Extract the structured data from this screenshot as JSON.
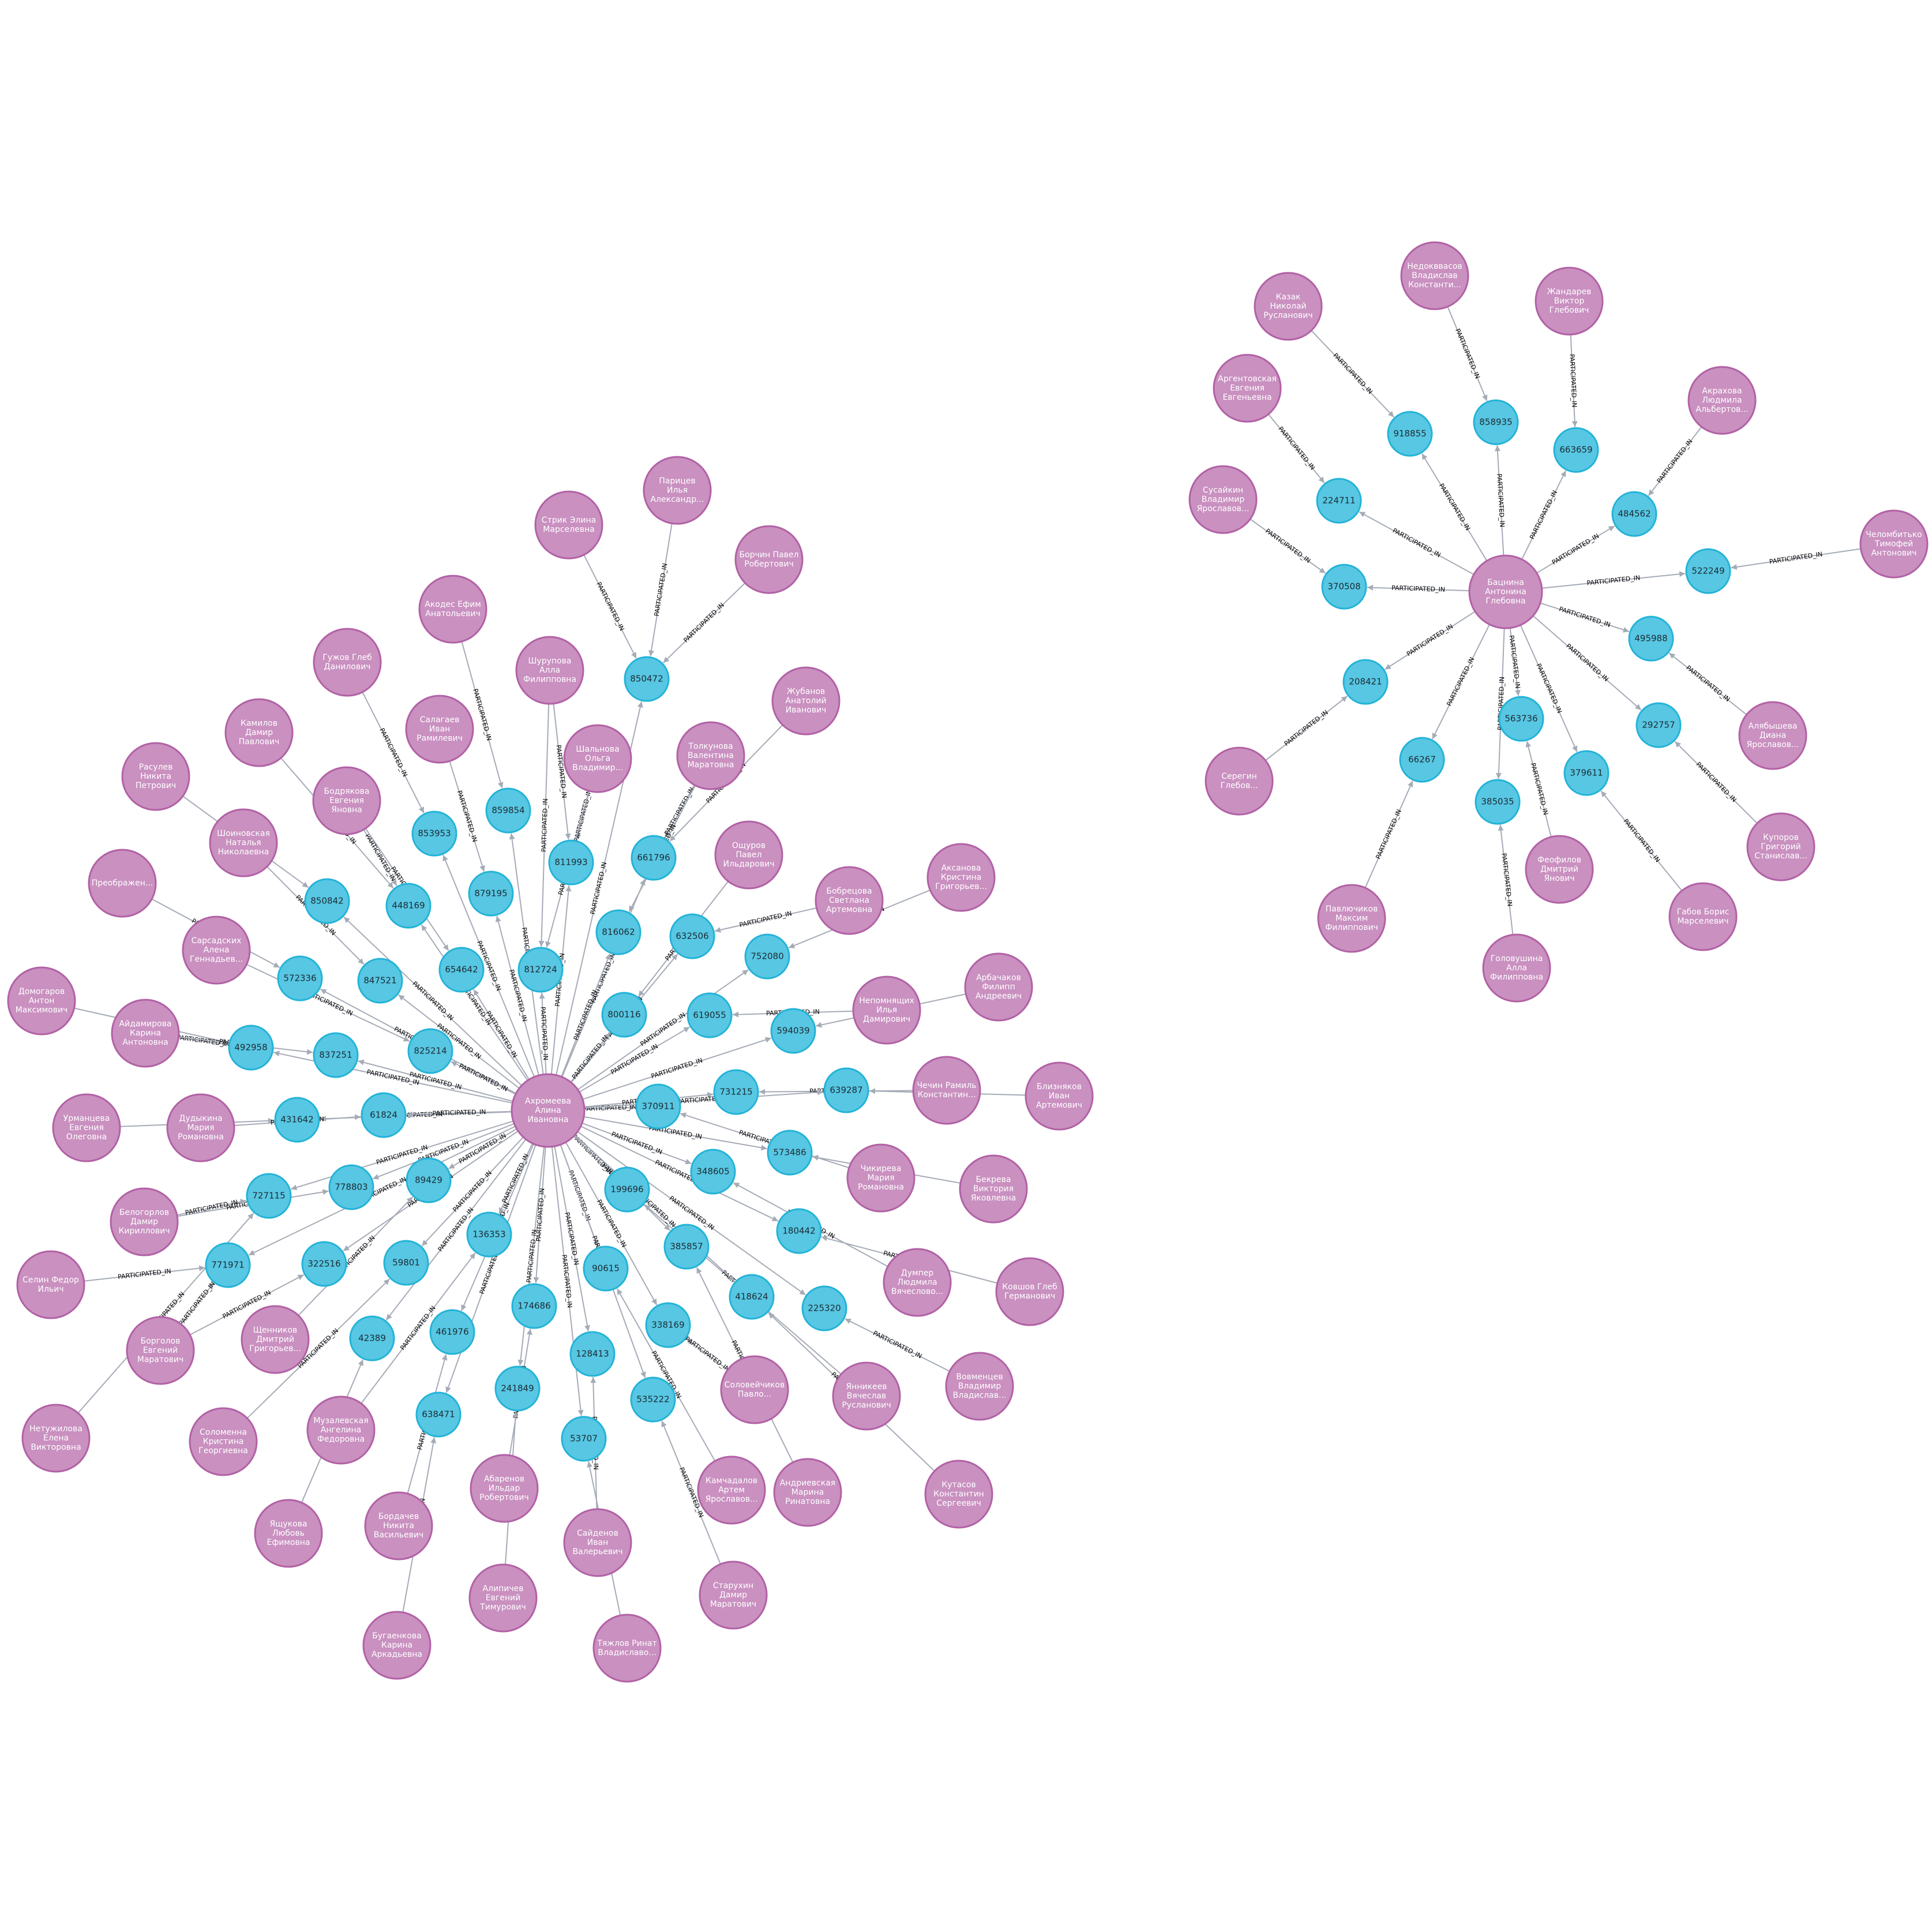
{
  "graph": {
    "relationship_label": "PARTICIPATED_IN",
    "colors": {
      "person_fill": "#c990c0",
      "person_stroke": "#b261a5",
      "event_fill": "#57c7e3",
      "event_stroke": "#23b3d7",
      "edge": "#a5abb6"
    },
    "persons": [
      {
        "id": "P0",
        "name": [
          "Ахромеева",
          "Алина",
          "Ивановна"
        ]
      },
      {
        "id": "P1",
        "name": [
          "Стрик Элина",
          "Марселевна"
        ]
      },
      {
        "id": "P2",
        "name": [
          "Парицев",
          "Илья",
          "Александр..."
        ]
      },
      {
        "id": "P3",
        "name": [
          "Борчин Павел",
          "Робертович"
        ]
      },
      {
        "id": "P4",
        "name": [
          "Акодес Ефим",
          "Анатольевич"
        ]
      },
      {
        "id": "P5",
        "name": [
          "Шурупова",
          "Алла",
          "Филипповна"
        ]
      },
      {
        "id": "P6",
        "name": [
          "Гужов Глеб",
          "Данилович"
        ]
      },
      {
        "id": "P7",
        "name": [
          "Салагаев",
          "Иван",
          "Рамилевич"
        ]
      },
      {
        "id": "P8",
        "name": [
          "Жубанов",
          "Анатолий",
          "Иванович"
        ]
      },
      {
        "id": "P9",
        "name": [
          "Шальнова",
          "Ольга",
          "Владимир..."
        ]
      },
      {
        "id": "P10",
        "name": [
          "Толкунова",
          "Валентина",
          "Маратовна"
        ]
      },
      {
        "id": "P11",
        "name": [
          "Камилов",
          "Дамир",
          "Павлович"
        ]
      },
      {
        "id": "P12",
        "name": [
          "Расулев",
          "Никита",
          "Петрович"
        ]
      },
      {
        "id": "P13",
        "name": [
          "Бодрякова",
          "Евгения",
          "Яновна"
        ]
      },
      {
        "id": "P14",
        "name": [
          "Ощуров",
          "Павел",
          "Ильдарович"
        ]
      },
      {
        "id": "P15",
        "name": [
          "Шоиновская",
          "Наталья",
          "Николаевна"
        ]
      },
      {
        "id": "P16",
        "name": [
          "Аксанова",
          "Кристина",
          "Григорьев..."
        ]
      },
      {
        "id": "P17",
        "name": [
          "Бобрецова",
          "Светлана",
          "Артемовна"
        ]
      },
      {
        "id": "P18",
        "name": [
          "Преображен..."
        ]
      },
      {
        "id": "P19",
        "name": [
          "Сарсадских",
          "Алена",
          "Геннадьев..."
        ]
      },
      {
        "id": "P20",
        "name": [
          "Арбачаков",
          "Филипп",
          "Андреевич"
        ]
      },
      {
        "id": "P21",
        "name": [
          "Домогаров",
          "Антон",
          "Максимович"
        ]
      },
      {
        "id": "P22",
        "name": [
          "Айдамирова",
          "Карина",
          "Антоновна"
        ]
      },
      {
        "id": "P23",
        "name": [
          "Непомнящих",
          "Илья",
          "Дамирович"
        ]
      },
      {
        "id": "P24",
        "name": [
          "Чечин Рамиль",
          "Константин..."
        ]
      },
      {
        "id": "P25",
        "name": [
          "Близняков",
          "Иван",
          "Артемович"
        ]
      },
      {
        "id": "P26",
        "name": [
          "Урманцева",
          "Евгения",
          "Олеговна"
        ]
      },
      {
        "id": "P27",
        "name": [
          "Дудыкина",
          "Мария",
          "Романовна"
        ]
      },
      {
        "id": "P28",
        "name": [
          "Чикирева",
          "Мария",
          "Романовна"
        ]
      },
      {
        "id": "P29",
        "name": [
          "Бекрева",
          "Виктория",
          "Яковлевна"
        ]
      },
      {
        "id": "P30",
        "name": [
          "Белогорлов",
          "Дамир",
          "Кириллович"
        ]
      },
      {
        "id": "P31",
        "name": [
          "Селин Федор",
          "Ильич"
        ]
      },
      {
        "id": "P32",
        "name": [
          "Думпер",
          "Людмила",
          "Вячеслово..."
        ]
      },
      {
        "id": "P33",
        "name": [
          "Ковшов Глеб",
          "Германович"
        ]
      },
      {
        "id": "P34",
        "name": [
          "Щенников",
          "Дмитрий",
          "Григорьев..."
        ]
      },
      {
        "id": "P35",
        "name": [
          "Борголов",
          "Евгений",
          "Маратович"
        ]
      },
      {
        "id": "P36",
        "name": [
          "Вовменцев",
          "Владимир",
          "Владислав..."
        ]
      },
      {
        "id": "P37",
        "name": [
          "Нетужилова",
          "Елена",
          "Викторовна"
        ]
      },
      {
        "id": "P38",
        "name": [
          "Соловейчиков",
          "Павло..."
        ]
      },
      {
        "id": "P39",
        "name": [
          "Янникеев",
          "Вячеслав",
          "Русланович"
        ]
      },
      {
        "id": "P40",
        "name": [
          "Соломенна",
          "Кристина",
          "Георгиевна"
        ]
      },
      {
        "id": "P41",
        "name": [
          "Музалевская",
          "Ангелина",
          "Федоровна"
        ]
      },
      {
        "id": "P42",
        "name": [
          "Андриевская",
          "Марина",
          "Ринатовна"
        ]
      },
      {
        "id": "P43",
        "name": [
          "Кутасов",
          "Константин",
          "Сергеевич"
        ]
      },
      {
        "id": "P44",
        "name": [
          "Камчадалов",
          "Артем",
          "Ярославов..."
        ]
      },
      {
        "id": "P45",
        "name": [
          "Абаренов",
          "Ильдар",
          "Робертович"
        ]
      },
      {
        "id": "P46",
        "name": [
          "Ящукова",
          "Любовь",
          "Ефимовна"
        ]
      },
      {
        "id": "P47",
        "name": [
          "Бордачев",
          "Никита",
          "Васильевич"
        ]
      },
      {
        "id": "P48",
        "name": [
          "Сайденов",
          "Иван",
          "Валерьевич"
        ]
      },
      {
        "id": "P49",
        "name": [
          "Старухин",
          "Дамир",
          "Маратович"
        ]
      },
      {
        "id": "P50",
        "name": [
          "Алипичев",
          "Евгений",
          "Тимурович"
        ]
      },
      {
        "id": "P51",
        "name": [
          "Бугаенкова",
          "Карина",
          "Аркадьевна"
        ]
      },
      {
        "id": "P52",
        "name": [
          "Тяжлов Ринат",
          "Владиславо..."
        ]
      },
      {
        "id": "Q0",
        "name": [
          "Бацнина",
          "Антонина",
          "Глебовна"
        ]
      },
      {
        "id": "Q1",
        "name": [
          "Казак",
          "Николай",
          "Русланович"
        ]
      },
      {
        "id": "Q2",
        "name": [
          "Недокввасов",
          "Владислав",
          "Константи..."
        ]
      },
      {
        "id": "Q3",
        "name": [
          "Жандарев",
          "Виктор",
          "Глебович"
        ]
      },
      {
        "id": "Q4",
        "name": [
          "Аргентовская",
          "Евгения",
          "Евгеньевна"
        ]
      },
      {
        "id": "Q5",
        "name": [
          "Акрахова",
          "Людмила",
          "Альбертов..."
        ]
      },
      {
        "id": "Q6",
        "name": [
          "Сусайкин",
          "Владимир",
          "Ярославов..."
        ]
      },
      {
        "id": "Q7",
        "name": [
          "Челомбитько",
          "Тимофей",
          "Антонович"
        ]
      },
      {
        "id": "Q8",
        "name": [
          "Алябышева",
          "Диана",
          "Ярославов..."
        ]
      },
      {
        "id": "Q9",
        "name": [
          "Серегин",
          "Глебов..."
        ]
      },
      {
        "id": "Q10",
        "name": [
          "Купоров",
          "Григорий",
          "Станислав..."
        ]
      },
      {
        "id": "Q11",
        "name": [
          "Феофилов",
          "Дмитрий",
          "Янович"
        ]
      },
      {
        "id": "Q12",
        "name": [
          "Павлючиков",
          "Максим",
          "Филиппович"
        ]
      },
      {
        "id": "Q13",
        "name": [
          "Габов Борис",
          "Марселевич"
        ]
      },
      {
        "id": "Q14",
        "name": [
          "Головушина",
          "Алла",
          "Филипповна"
        ]
      }
    ],
    "events": [
      "850472",
      "859854",
      "853953",
      "811993",
      "661796",
      "879195",
      "448169",
      "850842",
      "816062",
      "812724",
      "654642",
      "632506",
      "752080",
      "572336",
      "847521",
      "800116",
      "619055",
      "594039",
      "825214",
      "492958",
      "837251",
      "370911",
      "731215",
      "639287",
      "431642",
      "61824",
      "573486",
      "348605",
      "778803",
      "89429",
      "727115",
      "199696",
      "180442",
      "136353",
      "771971",
      "322516",
      "59801",
      "385857",
      "90615",
      "225320",
      "418624",
      "42389",
      "461976",
      "174686",
      "338169",
      "128413",
      "241849",
      "535222",
      "638471",
      "53707",
      "918855",
      "858935",
      "663659",
      "224711",
      "484562",
      "370508",
      "522249",
      "495988",
      "208421",
      "563736",
      "292757",
      "66267",
      "379611",
      "385035"
    ],
    "edges": [
      {
        "from": "P0",
        "to": "850472"
      },
      {
        "from": "P1",
        "to": "850472"
      },
      {
        "from": "P2",
        "to": "850472"
      },
      {
        "from": "P3",
        "to": "850472"
      },
      {
        "from": "P0",
        "to": "859854"
      },
      {
        "from": "P4",
        "to": "859854"
      },
      {
        "from": "P0",
        "to": "853953"
      },
      {
        "from": "P6",
        "to": "853953"
      },
      {
        "from": "P0",
        "to": "811993"
      },
      {
        "from": "P5",
        "to": "811993"
      },
      {
        "from": "P9",
        "to": "811993"
      },
      {
        "from": "P0",
        "to": "661796"
      },
      {
        "from": "P8",
        "to": "661796"
      },
      {
        "from": "P10",
        "to": "661796"
      },
      {
        "from": "P0",
        "to": "879195"
      },
      {
        "from": "P7",
        "to": "879195"
      },
      {
        "from": "P0",
        "to": "448169"
      },
      {
        "from": "P11",
        "to": "448169"
      },
      {
        "from": "P13",
        "to": "448169"
      },
      {
        "from": "P0",
        "to": "850842"
      },
      {
        "from": "P12",
        "to": "850842"
      },
      {
        "from": "P0",
        "to": "816062"
      },
      {
        "from": "P10",
        "to": "816062"
      },
      {
        "from": "P0",
        "to": "812724"
      },
      {
        "from": "P5",
        "to": "812724"
      },
      {
        "from": "P9",
        "to": "812724"
      },
      {
        "from": "P0",
        "to": "654642"
      },
      {
        "from": "P13",
        "to": "654642"
      },
      {
        "from": "P0",
        "to": "632506"
      },
      {
        "from": "P17",
        "to": "632506"
      },
      {
        "from": "P0",
        "to": "752080"
      },
      {
        "from": "P16",
        "to": "752080"
      },
      {
        "from": "P0",
        "to": "572336"
      },
      {
        "from": "P18",
        "to": "572336"
      },
      {
        "from": "P0",
        "to": "847521"
      },
      {
        "from": "P15",
        "to": "847521"
      },
      {
        "from": "P0",
        "to": "800116"
      },
      {
        "from": "P14",
        "to": "800116"
      },
      {
        "from": "P0",
        "to": "619055"
      },
      {
        "from": "P23",
        "to": "619055"
      },
      {
        "from": "P0",
        "to": "594039"
      },
      {
        "from": "P20",
        "to": "594039"
      },
      {
        "from": "P0",
        "to": "825214"
      },
      {
        "from": "P19",
        "to": "825214"
      },
      {
        "from": "P0",
        "to": "492958"
      },
      {
        "from": "P21",
        "to": "492958"
      },
      {
        "from": "P22",
        "to": "492958"
      },
      {
        "from": "P0",
        "to": "837251"
      },
      {
        "from": "P22",
        "to": "837251"
      },
      {
        "from": "P0",
        "to": "370911"
      },
      {
        "from": "P28",
        "to": "370911"
      },
      {
        "from": "P0",
        "to": "731215"
      },
      {
        "from": "P24",
        "to": "731215"
      },
      {
        "from": "P0",
        "to": "639287"
      },
      {
        "from": "P25",
        "to": "639287"
      },
      {
        "from": "P0",
        "to": "431642"
      },
      {
        "from": "P26",
        "to": "431642"
      },
      {
        "from": "P0",
        "to": "61824"
      },
      {
        "from": "P27",
        "to": "61824"
      },
      {
        "from": "P0",
        "to": "573486"
      },
      {
        "from": "P29",
        "to": "573486"
      },
      {
        "from": "P0",
        "to": "348605"
      },
      {
        "from": "P32",
        "to": "348605"
      },
      {
        "from": "P0",
        "to": "778803"
      },
      {
        "from": "P30",
        "to": "778803"
      },
      {
        "from": "P0",
        "to": "89429"
      },
      {
        "from": "P34",
        "to": "89429"
      },
      {
        "from": "P0",
        "to": "727115"
      },
      {
        "from": "P30",
        "to": "727115"
      },
      {
        "from": "P0",
        "to": "199696"
      },
      {
        "from": "P39",
        "to": "199696"
      },
      {
        "from": "P0",
        "to": "180442"
      },
      {
        "from": "P33",
        "to": "180442"
      },
      {
        "from": "P0",
        "to": "136353"
      },
      {
        "from": "P41",
        "to": "136353"
      },
      {
        "from": "P0",
        "to": "771971"
      },
      {
        "from": "P31",
        "to": "771971"
      },
      {
        "from": "P0",
        "to": "322516"
      },
      {
        "from": "P35",
        "to": "322516"
      },
      {
        "from": "P0",
        "to": "59801"
      },
      {
        "from": "P40",
        "to": "59801"
      },
      {
        "from": "P0",
        "to": "385857"
      },
      {
        "from": "P42",
        "to": "385857"
      },
      {
        "from": "P0",
        "to": "90615"
      },
      {
        "from": "P44",
        "to": "90615"
      },
      {
        "from": "P0",
        "to": "225320"
      },
      {
        "from": "P36",
        "to": "225320"
      },
      {
        "from": "P0",
        "to": "418624"
      },
      {
        "from": "P43",
        "to": "418624"
      },
      {
        "from": "P0",
        "to": "42389"
      },
      {
        "from": "P46",
        "to": "42389"
      },
      {
        "from": "P0",
        "to": "461976"
      },
      {
        "from": "P47",
        "to": "461976"
      },
      {
        "from": "P0",
        "to": "174686"
      },
      {
        "from": "P45",
        "to": "174686"
      },
      {
        "from": "P0",
        "to": "338169"
      },
      {
        "from": "P38",
        "to": "338169"
      },
      {
        "from": "P0",
        "to": "128413"
      },
      {
        "from": "P48",
        "to": "128413"
      },
      {
        "from": "P0",
        "to": "241849"
      },
      {
        "from": "P50",
        "to": "241849"
      },
      {
        "from": "P0",
        "to": "535222"
      },
      {
        "from": "P49",
        "to": "535222"
      },
      {
        "from": "P0",
        "to": "638471"
      },
      {
        "from": "P51",
        "to": "638471"
      },
      {
        "from": "P0",
        "to": "53707"
      },
      {
        "from": "P52",
        "to": "53707"
      },
      {
        "from": "P35",
        "to": "771971"
      },
      {
        "from": "P37",
        "to": "727115"
      },
      {
        "from": "Q0",
        "to": "918855"
      },
      {
        "from": "Q1",
        "to": "918855"
      },
      {
        "from": "Q0",
        "to": "858935"
      },
      {
        "from": "Q2",
        "to": "858935"
      },
      {
        "from": "Q0",
        "to": "663659"
      },
      {
        "from": "Q3",
        "to": "663659"
      },
      {
        "from": "Q0",
        "to": "224711"
      },
      {
        "from": "Q4",
        "to": "224711"
      },
      {
        "from": "Q0",
        "to": "484562"
      },
      {
        "from": "Q5",
        "to": "484562"
      },
      {
        "from": "Q0",
        "to": "370508"
      },
      {
        "from": "Q6",
        "to": "370508"
      },
      {
        "from": "Q0",
        "to": "522249"
      },
      {
        "from": "Q7",
        "to": "522249"
      },
      {
        "from": "Q0",
        "to": "495988"
      },
      {
        "from": "Q8",
        "to": "495988"
      },
      {
        "from": "Q0",
        "to": "208421"
      },
      {
        "from": "Q9",
        "to": "208421"
      },
      {
        "from": "Q0",
        "to": "563736"
      },
      {
        "from": "Q11",
        "to": "563736"
      },
      {
        "from": "Q0",
        "to": "292757"
      },
      {
        "from": "Q10",
        "to": "292757"
      },
      {
        "from": "Q0",
        "to": "66267"
      },
      {
        "from": "Q12",
        "to": "66267"
      },
      {
        "from": "Q0",
        "to": "379611"
      },
      {
        "from": "Q13",
        "to": "379611"
      },
      {
        "from": "Q0",
        "to": "385035"
      },
      {
        "from": "Q14",
        "to": "385035"
      }
    ]
  }
}
